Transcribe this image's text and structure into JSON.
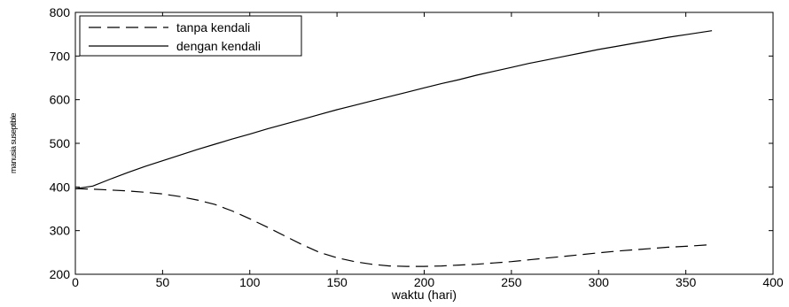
{
  "chart_data": {
    "type": "line",
    "title": "",
    "xlabel": "waktu (hari)",
    "ylabel": "manusia suseptible",
    "xlim": [
      0,
      400
    ],
    "ylim": [
      200,
      800
    ],
    "xticks": [
      0,
      50,
      100,
      150,
      200,
      250,
      300,
      350,
      400
    ],
    "yticks": [
      200,
      300,
      400,
      500,
      600,
      700,
      800
    ],
    "grid": false,
    "legend_position": "top-left",
    "series": [
      {
        "name": "tanpa kendali",
        "style": "dashed",
        "color": "#000000",
        "x": [
          0,
          10,
          20,
          30,
          40,
          50,
          60,
          70,
          80,
          90,
          100,
          110,
          120,
          130,
          140,
          150,
          160,
          170,
          180,
          190,
          200,
          210,
          220,
          230,
          240,
          250,
          260,
          270,
          280,
          290,
          300,
          310,
          320,
          330,
          340,
          350,
          365
        ],
        "y": [
          396,
          395,
          393,
          391,
          388,
          384,
          378,
          370,
          360,
          345,
          327,
          308,
          288,
          268,
          250,
          238,
          229,
          223,
          219,
          218,
          218,
          219,
          221,
          223,
          226,
          229,
          233,
          237,
          241,
          245,
          249,
          253,
          256,
          259,
          262,
          264,
          268
        ]
      },
      {
        "name": "dengan kendali",
        "style": "solid",
        "color": "#000000",
        "x": [
          0,
          10,
          20,
          30,
          40,
          50,
          60,
          70,
          80,
          90,
          100,
          110,
          120,
          130,
          140,
          150,
          160,
          170,
          180,
          190,
          200,
          210,
          220,
          230,
          240,
          250,
          260,
          270,
          280,
          290,
          300,
          310,
          320,
          330,
          340,
          350,
          365
        ],
        "y": [
          396,
          402,
          418,
          433,
          447,
          460,
          473,
          486,
          498,
          510,
          521,
          533,
          544,
          555,
          566,
          577,
          587,
          597,
          607,
          617,
          627,
          637,
          646,
          656,
          665,
          674,
          683,
          691,
          699,
          707,
          715,
          722,
          729,
          736,
          743,
          749,
          758
        ]
      }
    ]
  }
}
